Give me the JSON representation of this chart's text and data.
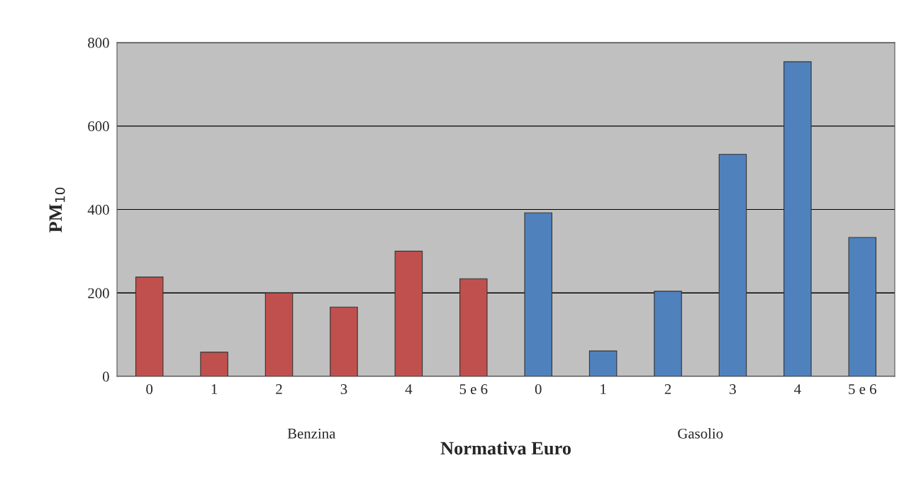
{
  "chart_data": {
    "type": "bar",
    "xlabel": "Normativa Euro",
    "ylabel": "PM$_{10}$",
    "categories": [
      "0",
      "1",
      "2",
      "3",
      "4",
      "5 e 6",
      "0",
      "1",
      "2",
      "3",
      "4",
      "5 e 6"
    ],
    "values": [
      238,
      58,
      200,
      166,
      300,
      234,
      392,
      61,
      204,
      532,
      754,
      333
    ],
    "colors": [
      "#c0504d",
      "#c0504d",
      "#c0504d",
      "#c0504d",
      "#c0504d",
      "#c0504d",
      "#4f81bd",
      "#4f81bd",
      "#4f81bd",
      "#4f81bd",
      "#4f81bd",
      "#4f81bd"
    ],
    "annotations": [
      "Benzina",
      "Gasolio"
    ],
    "ylim": [
      0,
      800
    ],
    "yticks": [
      0,
      200,
      400,
      600,
      800
    ],
    "grid": "y"
  }
}
